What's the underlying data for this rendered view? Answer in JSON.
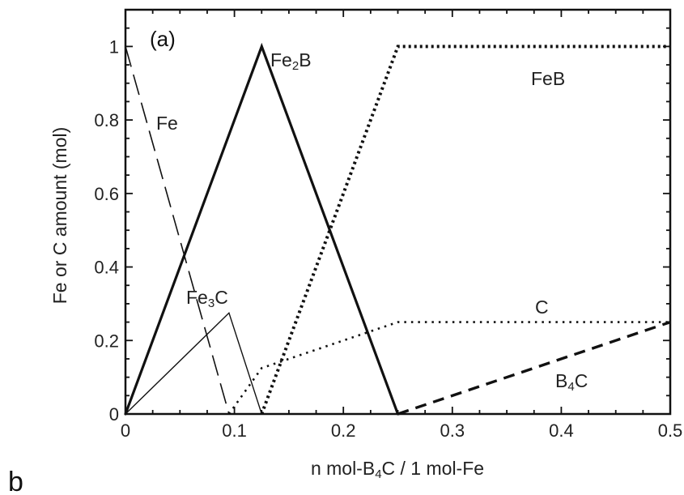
{
  "chart_data": {
    "type": "line",
    "panel_label": "(a)",
    "figure_letter": "b",
    "xlabel": {
      "before": "n mol-B",
      "sub": "4",
      "after": "C / 1 mol-Fe"
    },
    "ylabel": "Fe or C amount (mol)",
    "xlim": [
      0,
      0.5
    ],
    "ylim": [
      0,
      1.1
    ],
    "xticks": [
      0,
      0.1,
      0.2,
      0.3,
      0.4,
      0.5
    ],
    "xtick_labels": [
      "0",
      "0.1",
      "0.2",
      "0.3",
      "0.4",
      "0.5"
    ],
    "yticks": [
      0,
      0.2,
      0.4,
      0.6,
      0.8,
      1
    ],
    "ytick_labels": [
      "0",
      "0.2",
      "0.4",
      "0.6",
      "0.8",
      "1"
    ],
    "grid": false,
    "series": [
      {
        "id": "fe",
        "label": {
          "before": "Fe",
          "sub": "",
          "after": ""
        },
        "style": "long-dash",
        "color": "#111111",
        "x": [
          0,
          0.095
        ],
        "y": [
          1.0,
          0
        ]
      },
      {
        "id": "fe2b",
        "label": {
          "before": "Fe",
          "sub": "2",
          "after": "B"
        },
        "style": "solid-thick",
        "color": "#111111",
        "x": [
          0,
          0.125,
          0.25
        ],
        "y": [
          0,
          1.0,
          0
        ]
      },
      {
        "id": "fe3c",
        "label": {
          "before": "Fe",
          "sub": "3",
          "after": "C"
        },
        "style": "solid-thin",
        "color": "#111111",
        "x": [
          0,
          0.095,
          0.125
        ],
        "y": [
          0,
          0.275,
          0
        ]
      },
      {
        "id": "feb",
        "label": {
          "before": "FeB",
          "sub": "",
          "after": ""
        },
        "style": "dotted-thick",
        "color": "#111111",
        "x": [
          0.125,
          0.25,
          0.5
        ],
        "y": [
          0,
          1.0,
          1.0
        ]
      },
      {
        "id": "c",
        "label": {
          "before": "C",
          "sub": "",
          "after": ""
        },
        "style": "dotted-thin",
        "color": "#111111",
        "x": [
          0.095,
          0.125,
          0.25,
          0.5
        ],
        "y": [
          0,
          0.125,
          0.25,
          0.25
        ]
      },
      {
        "id": "b4c",
        "label": {
          "before": "B",
          "sub": "4",
          "after": "C"
        },
        "style": "short-dash-thick",
        "color": "#111111",
        "x": [
          0.25,
          0.5
        ],
        "y": [
          0,
          0.25
        ]
      }
    ]
  }
}
